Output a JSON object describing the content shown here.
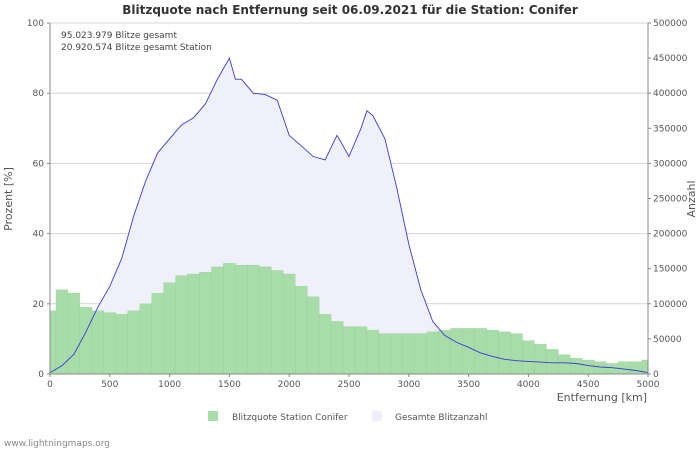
{
  "chart_data": {
    "type": "bar",
    "title": "Blitzquote nach Entfernung seit 06.09.2021 für die Station: Conifer",
    "xlabel": "Entfernung   [km]",
    "ylabel_left": "Prozent   [%]",
    "ylabel_right": "Anzahl",
    "xlim": [
      0,
      5000
    ],
    "ylim_left": [
      0,
      100
    ],
    "ylim_right": [
      0,
      500000
    ],
    "x_ticks": [
      "0",
      "500",
      "1000",
      "1500",
      "2000",
      "2500",
      "3000",
      "3500",
      "4000",
      "4500",
      "5000"
    ],
    "y_ticks_left": [
      "0",
      "20",
      "40",
      "60",
      "80",
      "100"
    ],
    "y_ticks_right": [
      "0",
      "50000",
      "100000",
      "150000",
      "200000",
      "250000",
      "300000",
      "350000",
      "400000",
      "450000",
      "500000"
    ],
    "grid": true,
    "info_lines": [
      "95.023.979 Blitze gesamt",
      "20.920.574 Blitze gesamt Station"
    ],
    "legend_position": "bottom",
    "legend": [
      "Blitzquote Station Conifer",
      "Gesamte Blitzanzahl"
    ],
    "series": [
      {
        "name": "Blitzquote Station Conifer",
        "axis": "left",
        "kind": "bar",
        "color": "#a8dca8",
        "x": [
          0,
          100,
          200,
          300,
          400,
          500,
          600,
          700,
          800,
          900,
          1000,
          1100,
          1200,
          1300,
          1400,
          1500,
          1600,
          1700,
          1800,
          1900,
          2000,
          2100,
          2200,
          2300,
          2400,
          2500,
          2600,
          2700,
          2800,
          2900,
          3000,
          3100,
          3200,
          3300,
          3400,
          3500,
          3600,
          3700,
          3800,
          3900,
          4000,
          4100,
          4200,
          4300,
          4400,
          4500,
          4600,
          4700,
          4800,
          4900,
          5000
        ],
        "values": [
          18,
          24,
          23,
          19,
          18,
          17.5,
          17,
          18,
          20,
          23,
          26,
          28,
          28.5,
          29,
          30.5,
          31.5,
          31,
          31,
          30.5,
          29.5,
          28.5,
          25,
          22,
          17,
          15,
          13.5,
          13.5,
          12.5,
          11.5,
          11.5,
          11.5,
          11.5,
          12,
          12.5,
          13,
          13,
          13,
          12.5,
          12,
          11.5,
          9.5,
          8.5,
          7,
          5.5,
          4.5,
          4,
          3.5,
          3,
          3.5,
          3.5,
          4
        ]
      },
      {
        "name": "Gesamte Blitzanzahl",
        "axis": "right",
        "kind": "area",
        "color": "#f0f0fa",
        "line_color": "#3a3ad8",
        "x": [
          0,
          100,
          200,
          300,
          400,
          500,
          600,
          700,
          800,
          900,
          1000,
          1100,
          1200,
          1300,
          1400,
          1450,
          1500,
          1550,
          1600,
          1700,
          1800,
          1900,
          2000,
          2100,
          2200,
          2300,
          2400,
          2500,
          2600,
          2650,
          2700,
          2800,
          2900,
          3000,
          3100,
          3200,
          3300,
          3400,
          3500,
          3600,
          3700,
          3800,
          3900,
          4000,
          4100,
          4200,
          4300,
          4400,
          4500,
          4600,
          4700,
          4800,
          4900,
          5000
        ],
        "values": [
          2000,
          12000,
          28000,
          60000,
          95000,
          125000,
          165000,
          225000,
          275000,
          315000,
          335000,
          355000,
          365000,
          385000,
          420000,
          435000,
          450000,
          420000,
          420000,
          400000,
          398000,
          390000,
          340000,
          325000,
          310000,
          305000,
          340000,
          310000,
          350000,
          375000,
          368000,
          335000,
          265000,
          185000,
          120000,
          75000,
          55000,
          45000,
          38000,
          30000,
          25000,
          21000,
          19000,
          18000,
          17000,
          16000,
          16000,
          15000,
          12000,
          10000,
          9000,
          7000,
          5000,
          2000
        ]
      }
    ]
  },
  "footer": "www.lightningmaps.org"
}
